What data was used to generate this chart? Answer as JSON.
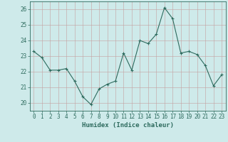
{
  "x": [
    0,
    1,
    2,
    3,
    4,
    5,
    6,
    7,
    8,
    9,
    10,
    11,
    12,
    13,
    14,
    15,
    16,
    17,
    18,
    19,
    20,
    21,
    22,
    23
  ],
  "y": [
    23.3,
    22.9,
    22.1,
    22.1,
    22.2,
    21.4,
    20.4,
    19.9,
    20.9,
    21.2,
    21.4,
    23.2,
    22.1,
    24.0,
    23.8,
    24.4,
    26.1,
    25.4,
    23.2,
    23.3,
    23.1,
    22.4,
    21.1,
    21.8
  ],
  "xlabel": "Humidex (Indice chaleur)",
  "ylim": [
    19.5,
    26.5
  ],
  "yticks": [
    20,
    21,
    22,
    23,
    24,
    25,
    26
  ],
  "line_color": "#2e6b5e",
  "marker_color": "#2e6b5e",
  "bg_color": "#ceeaea",
  "grid_color": "#c4a0a0",
  "axis_color": "#2e6b5e",
  "tick_label_color": "#2e6b5e",
  "xlabel_color": "#2e6b5e",
  "xlabel_fontsize": 6.5,
  "tick_fontsize": 5.5
}
